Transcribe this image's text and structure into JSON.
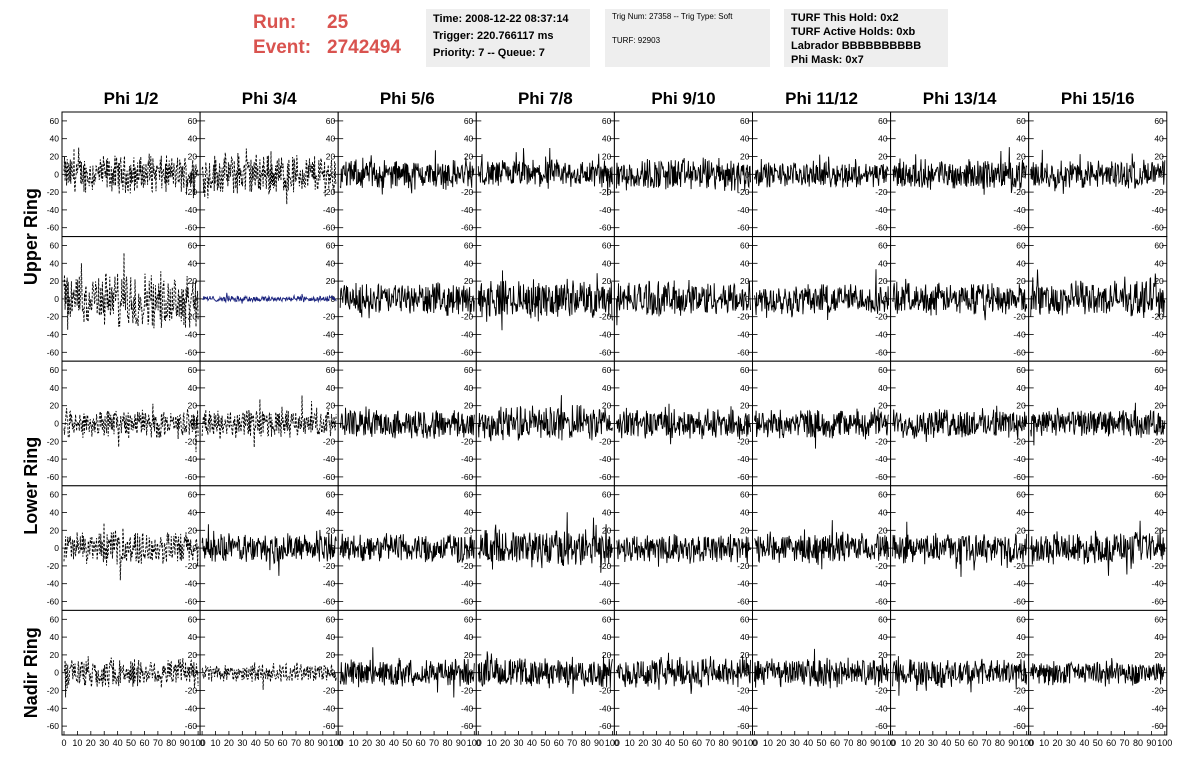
{
  "header": {
    "run_label": "Run:",
    "run_value": "25",
    "event_label": "Event:",
    "event_value": "2742494",
    "info_box_1": [
      "Time: 2008-12-22 08:37:14",
      "Trigger: 220.766117 ms",
      "Priority: 7 -- Queue: 7"
    ],
    "info_box_2": [
      "Trig Num: 27358 -- Trig Type: Soft",
      "",
      "TURF: 92903"
    ],
    "info_box_3": [
      "TURF This Hold: 0x2",
      "TURF Active Holds: 0xb",
      "Labrador BBBBBBBBBB",
      "Phi Mask: 0x7"
    ]
  },
  "chart_data": {
    "type": "line",
    "columns": [
      "Phi 1/2",
      "Phi 3/4",
      "Phi 5/6",
      "Phi 7/8",
      "Phi 9/10",
      "Phi 11/12",
      "Phi 13/14",
      "Phi 15/16"
    ],
    "rows": [
      "Upper Ring",
      "Upper Ring",
      "Lower Ring",
      "Lower Ring",
      "Nadir Ring"
    ],
    "row_labels": [
      {
        "label": "Upper Ring",
        "spans_rows": [
          0,
          1
        ]
      },
      {
        "label": "Lower Ring",
        "spans_rows": [
          2,
          3
        ]
      },
      {
        "label": "Nadir Ring",
        "spans_rows": [
          4
        ]
      }
    ],
    "xlim": [
      0,
      100
    ],
    "ylim": [
      -70,
      70
    ],
    "y_ticks": [
      -60,
      -40,
      -20,
      0,
      20,
      40,
      60
    ],
    "x_ticks": [
      "0",
      "10",
      "20",
      "30",
      "40",
      "50",
      "60",
      "70",
      "80",
      "90",
      "100"
    ],
    "samples_per_trace": 256,
    "panels": [
      [
        {
          "style": "dashed",
          "amp": 18
        },
        {
          "style": "dashed",
          "amp": 20
        },
        {
          "style": "solid",
          "amp": 14
        },
        {
          "style": "solid",
          "amp": 14
        },
        {
          "style": "solid",
          "amp": 16
        },
        {
          "style": "solid",
          "amp": 12
        },
        {
          "style": "solid",
          "amp": 14
        },
        {
          "style": "solid",
          "amp": 14
        }
      ],
      [
        {
          "style": "dashed",
          "amp": 26
        },
        {
          "style": "solid",
          "amp": 3,
          "color": "#1a237e"
        },
        {
          "style": "solid",
          "amp": 15
        },
        {
          "style": "solid",
          "amp": 18
        },
        {
          "style": "solid",
          "amp": 17
        },
        {
          "style": "solid",
          "amp": 15
        },
        {
          "style": "solid",
          "amp": 15
        },
        {
          "style": "solid",
          "amp": 17
        }
      ],
      [
        {
          "style": "dashed",
          "amp": 14
        },
        {
          "style": "dashed",
          "amp": 14
        },
        {
          "style": "solid",
          "amp": 14
        },
        {
          "style": "solid",
          "amp": 17
        },
        {
          "style": "solid",
          "amp": 14
        },
        {
          "style": "solid",
          "amp": 14
        },
        {
          "style": "solid",
          "amp": 14
        },
        {
          "style": "solid",
          "amp": 13
        }
      ],
      [
        {
          "style": "dashed",
          "amp": 16
        },
        {
          "style": "solid",
          "amp": 14
        },
        {
          "style": "solid",
          "amp": 14
        },
        {
          "style": "solid",
          "amp": 18
        },
        {
          "style": "solid",
          "amp": 14
        },
        {
          "style": "solid",
          "amp": 14
        },
        {
          "style": "solid",
          "amp": 14
        },
        {
          "style": "solid",
          "amp": 15
        }
      ],
      [
        {
          "style": "dashed",
          "amp": 15
        },
        {
          "style": "dashed",
          "amp": 9
        },
        {
          "style": "solid",
          "amp": 13
        },
        {
          "style": "solid",
          "amp": 14
        },
        {
          "style": "solid",
          "amp": 15
        },
        {
          "style": "solid",
          "amp": 14
        },
        {
          "style": "solid",
          "amp": 13
        },
        {
          "style": "solid",
          "amp": 11
        }
      ]
    ],
    "trace_color": "#000000"
  }
}
